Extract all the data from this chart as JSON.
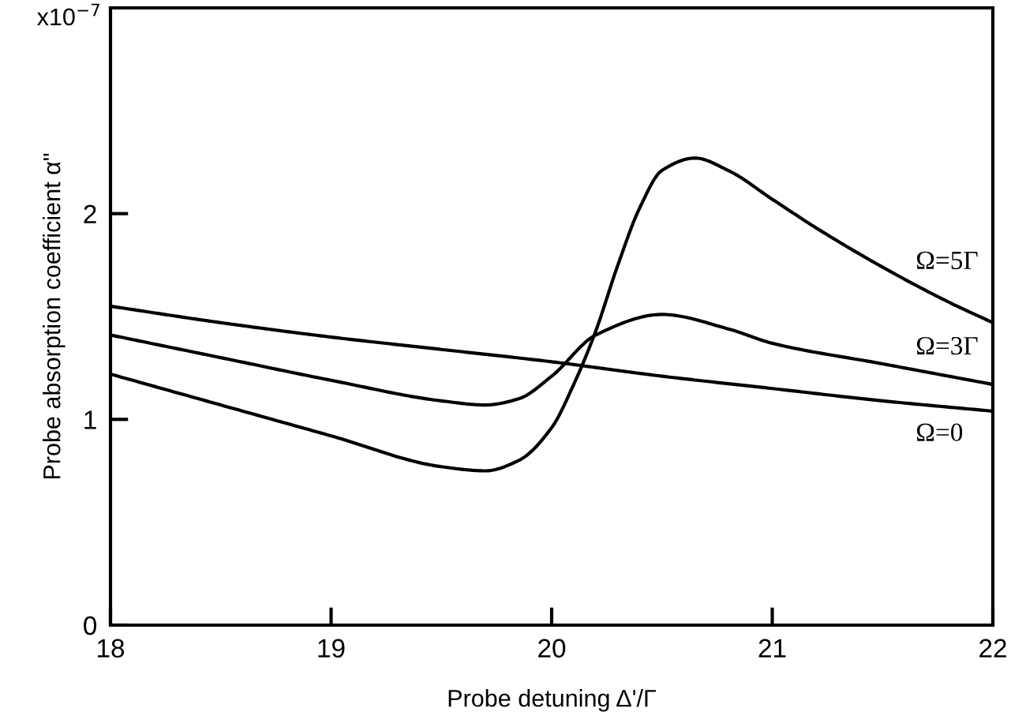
{
  "chart_data": {
    "type": "line",
    "xlabel": "Probe detuning Δ'/Γ",
    "ylabel": "Probe absorption coefficient α\"",
    "xlim": [
      18,
      22
    ],
    "ylim": [
      0,
      3
    ],
    "xticks": [
      18,
      19,
      20,
      21,
      22
    ],
    "yticks": [
      0,
      1,
      2
    ],
    "grid": false,
    "legend": false,
    "marker": "none",
    "line_style": "solid",
    "series": [
      {
        "name": "Ω=0",
        "color": "#000000",
        "x": [
          18,
          18.5,
          19,
          19.5,
          20,
          20.5,
          21,
          21.5,
          22
        ],
        "values": [
          1.55,
          1.47,
          1.4,
          1.34,
          1.28,
          1.21,
          1.15,
          1.09,
          1.04
        ]
      },
      {
        "name": "Ω=3Γ",
        "color": "#000000",
        "x": [
          18,
          18.5,
          19,
          19.5,
          19.7,
          19.85,
          20,
          20.2,
          20.5,
          20.8,
          21,
          21.5,
          22
        ],
        "values": [
          1.41,
          1.3,
          1.19,
          1.09,
          1.07,
          1.1,
          1.21,
          1.41,
          1.51,
          1.44,
          1.37,
          1.27,
          1.17
        ]
      },
      {
        "name": "Ω=5Γ",
        "color": "#000000",
        "x": [
          18,
          18.5,
          19,
          19.5,
          19.7,
          19.85,
          20,
          20.1,
          20.2,
          20.3,
          20.4,
          20.5,
          20.65,
          20.8,
          21,
          21.2,
          21.5,
          21.8,
          22
        ],
        "values": [
          1.22,
          1.07,
          0.92,
          0.77,
          0.75,
          0.8,
          0.96,
          1.17,
          1.43,
          1.75,
          2.03,
          2.21,
          2.27,
          2.21,
          2.07,
          1.93,
          1.74,
          1.57,
          1.47
        ]
      }
    ],
    "annotations": [
      "x10$^{−7}$"
    ]
  }
}
